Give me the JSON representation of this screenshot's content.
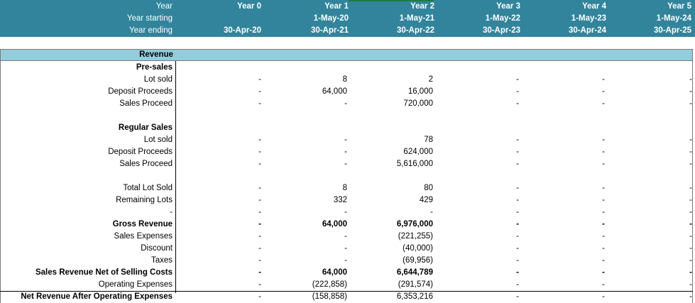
{
  "header": {
    "rows": [
      {
        "label": "Year",
        "cols": [
          "Year 0",
          "Year 1",
          "Year 2",
          "Year 3",
          "Year 4",
          "Year 5"
        ]
      },
      {
        "label": "Year  starting",
        "cols": [
          "",
          "1-May-20",
          "1-May-21",
          "1-May-22",
          "1-May-23",
          "1-May-24"
        ]
      },
      {
        "label": "Year ending",
        "cols": [
          "30-Apr-20",
          "30-Apr-21",
          "30-Apr-22",
          "30-Apr-23",
          "30-Apr-24",
          "30-Apr-25"
        ]
      }
    ],
    "colors": {
      "header_bg": "#31849b",
      "section_bg": "#92cddc"
    }
  },
  "section": {
    "label": "Revenue"
  },
  "rows": [
    {
      "label": "Pre-sales",
      "bold": true,
      "cols": [
        "",
        "",
        "",
        "",
        "",
        ""
      ]
    },
    {
      "label": "Lot sold",
      "bold": false,
      "cols": [
        "-",
        "8",
        "2",
        "-",
        "-",
        "-"
      ]
    },
    {
      "label": "Deposit Proceeds",
      "bold": false,
      "cols": [
        "-",
        "64,000",
        "16,000",
        "-",
        "-",
        "-"
      ]
    },
    {
      "label": "Sales Proceed",
      "bold": false,
      "cols": [
        "-",
        "-",
        "720,000",
        "-",
        "-",
        "-"
      ]
    },
    {
      "label": "",
      "bold": false,
      "cols": [
        "",
        "",
        "",
        "",
        "",
        ""
      ]
    },
    {
      "label": "Regular Sales",
      "bold": true,
      "cols": [
        "",
        "",
        "",
        "",
        "",
        ""
      ]
    },
    {
      "label": "Lot sold",
      "bold": false,
      "cols": [
        "-",
        "-",
        "78",
        "-",
        "-",
        "-"
      ]
    },
    {
      "label": "Deposit Proceeds",
      "bold": false,
      "cols": [
        "-",
        "-",
        "624,000",
        "-",
        "-",
        "-"
      ]
    },
    {
      "label": "Sales Proceed",
      "bold": false,
      "cols": [
        "-",
        "-",
        "5,616,000",
        "-",
        "-",
        "-"
      ]
    },
    {
      "label": "",
      "bold": false,
      "cols": [
        "",
        "",
        "",
        "",
        "",
        ""
      ]
    },
    {
      "label": "Total Lot Sold",
      "bold": false,
      "cols": [
        "-",
        "8",
        "80",
        "-",
        "-",
        "-"
      ]
    },
    {
      "label": "Remaining Lots",
      "bold": false,
      "cols": [
        "-",
        "332",
        "429",
        "-",
        "-",
        "-"
      ]
    },
    {
      "label": "-",
      "bold": false,
      "cols": [
        "-",
        "-",
        "-",
        "-",
        "-",
        "-"
      ]
    },
    {
      "label": "Gross Revenue",
      "bold": true,
      "cols": [
        "-",
        "64,000",
        "6,976,000",
        "-",
        "-",
        "-"
      ],
      "boldvals": true
    },
    {
      "label": "Sales Expenses",
      "bold": false,
      "cols": [
        "-",
        "-",
        "(221,255)",
        "-",
        "-",
        "-"
      ]
    },
    {
      "label": "Discount",
      "bold": false,
      "cols": [
        "-",
        "-",
        "(40,000)",
        "-",
        "-",
        "-"
      ]
    },
    {
      "label": "Taxes",
      "bold": false,
      "cols": [
        "-",
        "-",
        "(69,956)",
        "-",
        "-",
        "-"
      ]
    },
    {
      "label": "Sales Revenue Net of Selling Costs",
      "bold": true,
      "cols": [
        "-",
        "64,000",
        "6,644,789",
        "-",
        "-",
        "-"
      ],
      "boldvals": true
    },
    {
      "label": "Operating Expenses",
      "bold": false,
      "cols": [
        "-",
        "(222,858)",
        "(291,574)",
        "-",
        "-",
        "-"
      ]
    },
    {
      "label": "Net Revenue After Operating Expenses",
      "bold": true,
      "cols": [
        "-",
        "(158,858)",
        "6,353,216",
        "-",
        "-",
        "-"
      ],
      "boldvals": false
    }
  ]
}
